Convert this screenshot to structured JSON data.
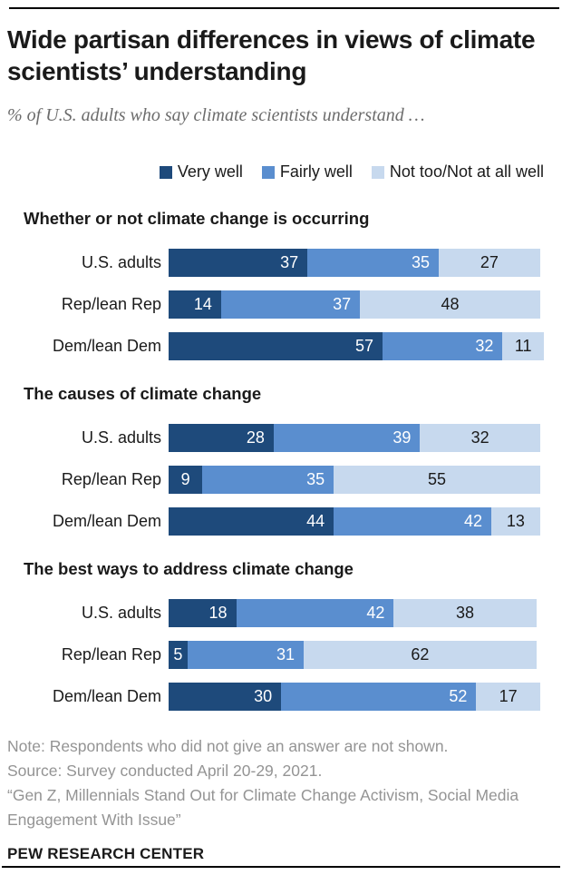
{
  "header": {
    "title": "Wide partisan differences in views of climate scientists’ understanding",
    "subtitle": "% of U.S. adults who say climate scientists understand …"
  },
  "legend": [
    {
      "label": "Very well",
      "color": "#1e4a7b"
    },
    {
      "label": "Fairly well",
      "color": "#5a8ecf"
    },
    {
      "label": "Not too/Not at all well",
      "color": "#c7d9ee"
    }
  ],
  "colors": {
    "very_well": "#1e4a7b",
    "fairly_well": "#5a8ecf",
    "not_well": "#c7d9ee",
    "value_text_on_dark": "#ffffff",
    "value_text_on_light": "#1a1a1a",
    "rule": "#000000"
  },
  "chart_data": {
    "type": "bar",
    "orientation": "horizontal",
    "stacked": true,
    "unit": "%",
    "xlim": [
      0,
      100
    ],
    "series_names": [
      "Very well",
      "Fairly well",
      "Not too/Not at all well"
    ],
    "groups": [
      {
        "title": "Whether or not climate change is occurring",
        "rows": [
          {
            "label": "U.S. adults",
            "values": [
              37,
              35,
              27
            ]
          },
          {
            "label": "Rep/lean Rep",
            "values": [
              14,
              37,
              48
            ]
          },
          {
            "label": "Dem/lean Dem",
            "values": [
              57,
              32,
              11
            ]
          }
        ]
      },
      {
        "title": "The causes of climate change",
        "rows": [
          {
            "label": "U.S. adults",
            "values": [
              28,
              39,
              32
            ]
          },
          {
            "label": "Rep/lean Rep",
            "values": [
              9,
              35,
              55
            ]
          },
          {
            "label": "Dem/lean Dem",
            "values": [
              44,
              42,
              13
            ]
          }
        ]
      },
      {
        "title": "The best ways to address climate change",
        "rows": [
          {
            "label": "U.S. adults",
            "values": [
              18,
              42,
              38
            ]
          },
          {
            "label": "Rep/lean Rep",
            "values": [
              5,
              31,
              62
            ]
          },
          {
            "label": "Dem/lean Dem",
            "values": [
              30,
              52,
              17
            ]
          }
        ]
      }
    ]
  },
  "footer": {
    "notes": [
      "Note: Respondents who did not give an answer are not shown.",
      "Source: Survey conducted April 20-29, 2021.",
      "“Gen Z, Millennials Stand Out for Climate Change Activism, Social Media Engagement With Issue”"
    ],
    "brand": "PEW RESEARCH CENTER"
  }
}
